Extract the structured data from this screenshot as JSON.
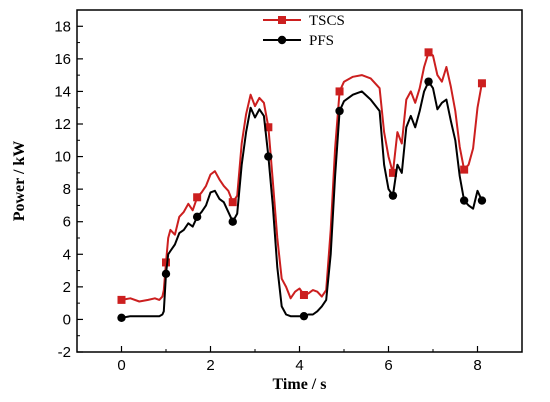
{
  "chart_data": {
    "type": "line",
    "xlabel": "Time / s",
    "ylabel": "Power  / kW",
    "xlim": [
      -1,
      9
    ],
    "ylim": [
      -2,
      19
    ],
    "xticks": [
      0,
      2,
      4,
      6,
      8
    ],
    "yticks": [
      -2,
      0,
      2,
      4,
      6,
      8,
      10,
      12,
      14,
      16,
      18
    ],
    "grid": false,
    "legend_position": "top-center",
    "series": [
      {
        "name": "TSCS",
        "color": "#cc1f1f",
        "marker": "square",
        "x": [
          0,
          0.2,
          0.4,
          0.6,
          0.75,
          0.85,
          0.92,
          0.95,
          1.0,
          1.05,
          1.1,
          1.2,
          1.3,
          1.4,
          1.5,
          1.6,
          1.7,
          1.8,
          1.9,
          2.0,
          2.1,
          2.2,
          2.3,
          2.4,
          2.5,
          2.6,
          2.7,
          2.8,
          2.9,
          3.0,
          3.1,
          3.2,
          3.3,
          3.4,
          3.5,
          3.6,
          3.7,
          3.8,
          3.9,
          4.0,
          4.1,
          4.2,
          4.3,
          4.4,
          4.5,
          4.6,
          4.7,
          4.8,
          4.9,
          5.0,
          5.2,
          5.4,
          5.6,
          5.8,
          5.9,
          6.0,
          6.1,
          6.2,
          6.3,
          6.4,
          6.5,
          6.6,
          6.7,
          6.8,
          6.9,
          7.0,
          7.1,
          7.2,
          7.3,
          7.4,
          7.5,
          7.6,
          7.7,
          7.8,
          7.9,
          8.0,
          8.1
        ],
        "values": [
          1.2,
          1.3,
          1.1,
          1.2,
          1.3,
          1.2,
          1.4,
          1.8,
          3.5,
          5.0,
          5.5,
          5.2,
          6.3,
          6.6,
          7.1,
          6.7,
          7.5,
          7.8,
          8.2,
          8.9,
          9.1,
          8.6,
          8.2,
          7.9,
          7.2,
          7.6,
          10.8,
          12.6,
          13.8,
          13.1,
          13.6,
          13.3,
          11.8,
          8.5,
          5.0,
          2.5,
          2.0,
          1.3,
          1.7,
          1.9,
          1.5,
          1.6,
          1.8,
          1.7,
          1.4,
          1.8,
          5.5,
          10.5,
          14.0,
          14.6,
          14.9,
          15.0,
          14.8,
          14.2,
          11.5,
          10.0,
          9.0,
          11.5,
          10.8,
          13.5,
          14.0,
          13.3,
          14.2,
          15.5,
          16.4,
          16.2,
          15.0,
          14.6,
          15.5,
          14.3,
          12.8,
          10.6,
          9.2,
          9.5,
          10.5,
          13.0,
          14.5
        ]
      },
      {
        "name": "PFS",
        "color": "#000000",
        "marker": "circle",
        "x": [
          0,
          0.2,
          0.4,
          0.6,
          0.75,
          0.85,
          0.92,
          0.95,
          1.0,
          1.05,
          1.1,
          1.2,
          1.3,
          1.4,
          1.5,
          1.6,
          1.7,
          1.8,
          1.9,
          2.0,
          2.1,
          2.2,
          2.3,
          2.4,
          2.5,
          2.6,
          2.7,
          2.8,
          2.9,
          3.0,
          3.1,
          3.2,
          3.3,
          3.4,
          3.5,
          3.6,
          3.7,
          3.8,
          3.9,
          4.0,
          4.1,
          4.2,
          4.3,
          4.4,
          4.5,
          4.6,
          4.7,
          4.8,
          4.9,
          5.0,
          5.2,
          5.4,
          5.6,
          5.8,
          5.9,
          6.0,
          6.1,
          6.2,
          6.3,
          6.4,
          6.5,
          6.6,
          6.7,
          6.8,
          6.9,
          7.0,
          7.1,
          7.2,
          7.3,
          7.4,
          7.5,
          7.6,
          7.7,
          7.8,
          7.9,
          8.0,
          8.1
        ],
        "values": [
          0.1,
          0.2,
          0.2,
          0.2,
          0.2,
          0.2,
          0.3,
          0.5,
          2.8,
          4.0,
          4.2,
          4.6,
          5.3,
          5.5,
          5.9,
          5.7,
          6.3,
          6.6,
          7.0,
          7.8,
          7.9,
          7.4,
          7.2,
          6.6,
          6.0,
          6.5,
          9.5,
          11.5,
          13.0,
          12.4,
          12.9,
          12.5,
          10.0,
          7.0,
          3.2,
          0.8,
          0.3,
          0.2,
          0.2,
          0.2,
          0.2,
          0.3,
          0.3,
          0.5,
          0.8,
          1.2,
          4.0,
          8.8,
          12.8,
          13.4,
          13.8,
          14.0,
          13.5,
          12.8,
          9.5,
          8.0,
          7.6,
          9.5,
          9.0,
          11.8,
          12.5,
          11.8,
          12.8,
          14.0,
          14.6,
          14.2,
          12.9,
          13.3,
          13.5,
          12.2,
          11.0,
          8.8,
          7.3,
          7.0,
          6.8,
          7.9,
          7.3
        ]
      }
    ]
  }
}
